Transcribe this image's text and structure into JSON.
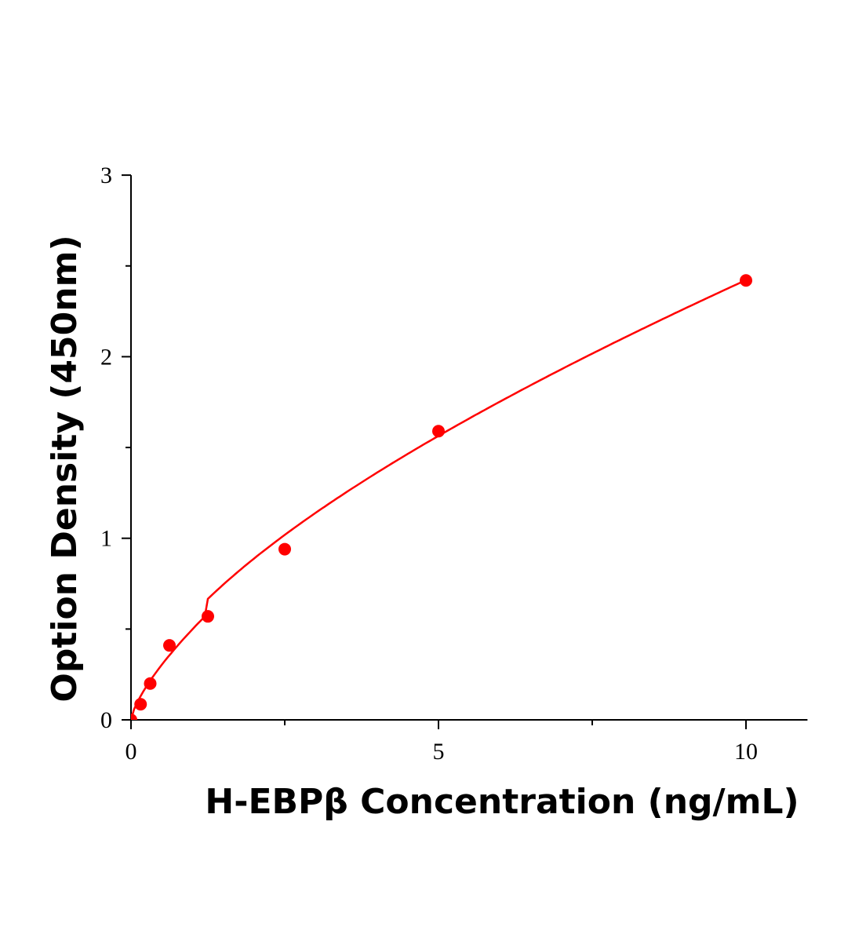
{
  "chart_data": {
    "type": "scatter",
    "title": "",
    "xlabel": "H-EBPβ Concentration (ng/mL)",
    "ylabel": "Option Density (450nm)",
    "xlim": [
      0,
      11
    ],
    "ylim": [
      0,
      3
    ],
    "x_ticks": [
      "0",
      "5",
      "10"
    ],
    "y_ticks": [
      "0",
      "1",
      "2",
      "3"
    ],
    "grid": false,
    "legend": "none",
    "series": [
      {
        "x": [
          0,
          0.156,
          0.3125,
          0.625,
          1.25,
          2.5,
          5,
          10
        ],
        "y": [
          0.0,
          0.086,
          0.2,
          0.41,
          0.57,
          0.94,
          1.59,
          2.42
        ],
        "color": "#ff0000",
        "fit_curve": true
      }
    ]
  }
}
